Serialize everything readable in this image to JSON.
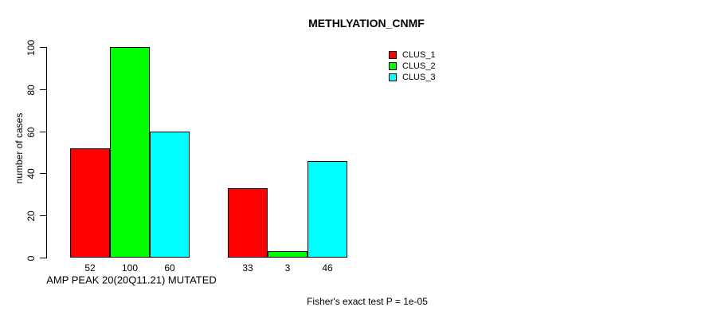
{
  "chart_data": {
    "type": "bar",
    "title": "METHLYATION_CNMF",
    "ylabel": "number of cases",
    "xlabel": "AMP PEAK 20(20Q11.21) MUTATED",
    "annotation": "Fisher's exact test P = 1e-05",
    "ylim": [
      0,
      100
    ],
    "yticks": [
      0,
      20,
      40,
      60,
      80,
      100
    ],
    "grid": false,
    "legend_position": "top-right",
    "bar_value_labels_shown": true,
    "bar_outline_color": "#000000",
    "n_groups": 2,
    "series": [
      {
        "name": "CLUS_1",
        "color": "#ff0000",
        "values": [
          52,
          33
        ]
      },
      {
        "name": "CLUS_2",
        "color": "#00ff00",
        "values": [
          100,
          3
        ]
      },
      {
        "name": "CLUS_3",
        "color": "#00ffff",
        "values": [
          60,
          46
        ]
      }
    ]
  }
}
